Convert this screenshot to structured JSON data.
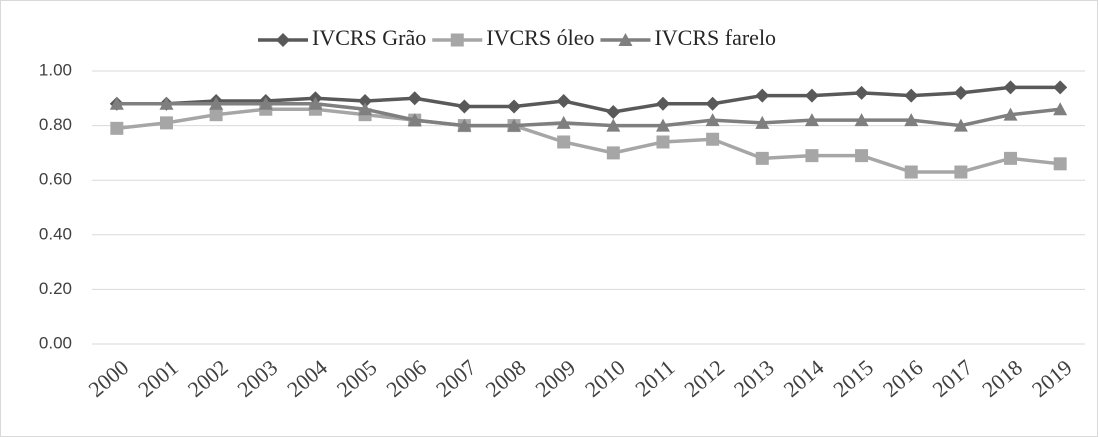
{
  "chart_data": {
    "type": "line",
    "categories": [
      "2000",
      "2001",
      "2002",
      "2003",
      "2004",
      "2005",
      "2006",
      "2007",
      "2008",
      "2009",
      "2010",
      "2011",
      "2012",
      "2013",
      "2014",
      "2015",
      "2016",
      "2017",
      "2018",
      "2019"
    ],
    "series": [
      {
        "name": "IVCRS Grão",
        "color": "#595959",
        "marker": "diamond",
        "values": [
          0.88,
          0.88,
          0.89,
          0.89,
          0.9,
          0.89,
          0.9,
          0.87,
          0.87,
          0.89,
          0.85,
          0.88,
          0.88,
          0.91,
          0.91,
          0.92,
          0.91,
          0.92,
          0.94,
          0.94
        ]
      },
      {
        "name": "IVCRS óleo",
        "color": "#a6a6a6",
        "marker": "square",
        "values": [
          0.79,
          0.81,
          0.84,
          0.86,
          0.86,
          0.84,
          0.82,
          0.8,
          0.8,
          0.74,
          0.7,
          0.74,
          0.75,
          0.68,
          0.69,
          0.69,
          0.63,
          0.63,
          0.68,
          0.66
        ]
      },
      {
        "name": "IVCRS farelo",
        "color": "#7f7f7f",
        "marker": "triangle",
        "values": [
          0.88,
          0.88,
          0.88,
          0.88,
          0.88,
          0.86,
          0.82,
          0.8,
          0.8,
          0.81,
          0.8,
          0.8,
          0.82,
          0.81,
          0.82,
          0.82,
          0.82,
          0.8,
          0.84,
          0.86
        ]
      }
    ],
    "ylim": [
      0,
      1
    ],
    "yticks": [
      {
        "value": 0,
        "label": "0.00"
      },
      {
        "value": 0.2,
        "label": "0.20"
      },
      {
        "value": 0.4,
        "label": "0.40"
      },
      {
        "value": 0.6,
        "label": "0.60"
      },
      {
        "value": 0.8,
        "label": "0.80"
      },
      {
        "value": 1,
        "label": "1.00"
      }
    ],
    "grid": true,
    "legend": "top"
  }
}
